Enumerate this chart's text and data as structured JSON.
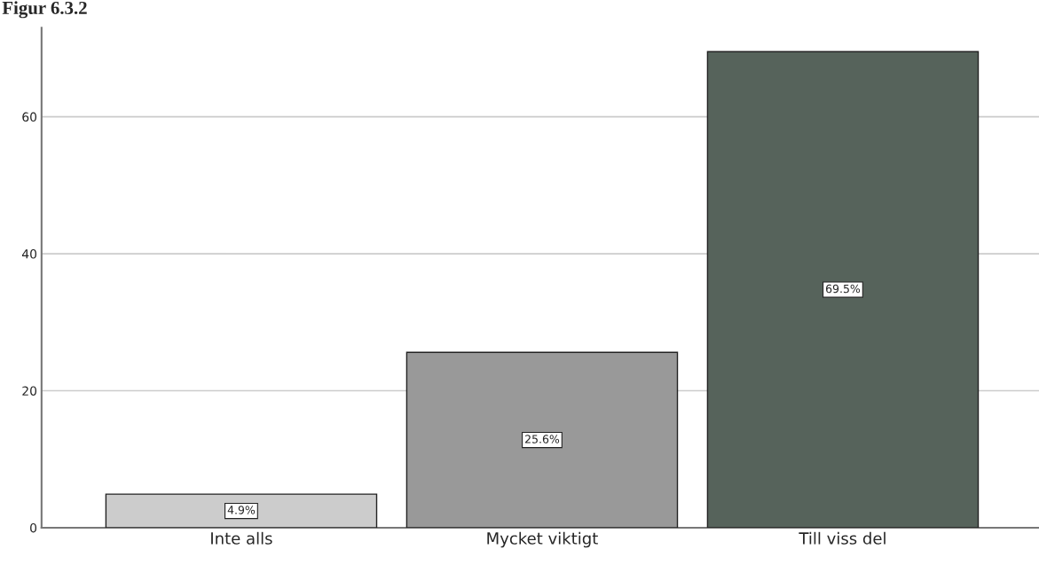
{
  "chart_data": {
    "type": "bar",
    "title": "Figur 6.3.2",
    "categories": [
      "Inte alls",
      "Mycket viktigt",
      "Till viss del"
    ],
    "values": [
      4.9,
      25.6,
      69.5
    ],
    "colors": [
      "#cccccc",
      "#999999",
      "#56635b"
    ],
    "value_labels": [
      "4.9%",
      "25.6%",
      "69.5%"
    ],
    "ylim": [
      0,
      73
    ],
    "yticks": [
      0,
      20,
      40,
      60
    ],
    "grid": "y"
  }
}
